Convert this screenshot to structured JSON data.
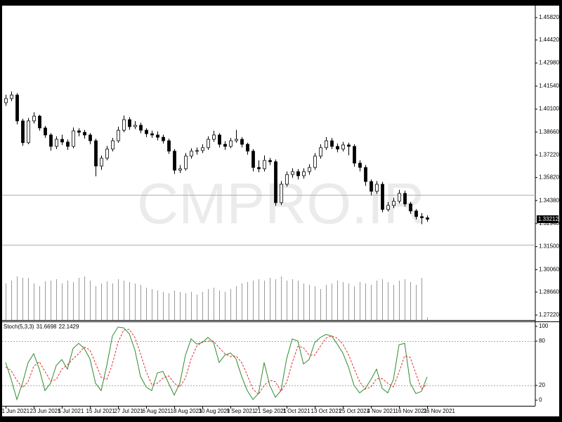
{
  "chart_data": [
    {
      "type": "candlestick",
      "watermark": "CMPRO.IR",
      "categories": [
        "1 Jun 2021",
        null,
        null,
        null,
        null,
        "23 Jun 2021",
        null,
        null,
        null,
        null,
        "5 Jul 2021",
        null,
        null,
        null,
        null,
        "15 Jul 2021",
        null,
        null,
        null,
        null,
        "27 Jul 2021",
        null,
        null,
        null,
        null,
        "6 Aug 2021",
        null,
        null,
        null,
        null,
        "18 Aug 2021",
        null,
        null,
        null,
        null,
        "30 Aug 2021",
        null,
        null,
        null,
        null,
        "9 Sep 2021",
        null,
        null,
        null,
        null,
        "21 Sep 2021",
        null,
        null,
        null,
        null,
        "1 Oct 2021",
        null,
        null,
        null,
        null,
        "13 Oct 2021",
        null,
        null,
        null,
        null,
        "25 Oct 2021",
        null,
        null,
        null,
        null,
        "4 Nov 2021",
        null,
        null,
        null,
        null,
        "16 Nov 2021",
        null,
        null,
        null,
        null,
        "26 Nov 2021"
      ],
      "ohlc": [
        [
          1.405,
          1.41,
          1.403,
          1.4076
        ],
        [
          1.4076,
          1.412,
          1.406,
          1.4098
        ],
        [
          1.4098,
          1.411,
          1.3915,
          1.3936
        ],
        [
          1.3936,
          1.395,
          1.378,
          1.38
        ],
        [
          1.38,
          1.3955,
          1.379,
          1.3936
        ],
        [
          1.3936,
          1.399,
          1.392,
          1.3966
        ],
        [
          1.3966,
          1.3975,
          1.3875,
          1.3892
        ],
        [
          1.3892,
          1.3905,
          1.383,
          1.3848
        ],
        [
          1.3848,
          1.386,
          1.375,
          1.3777
        ],
        [
          1.3777,
          1.384,
          1.376,
          1.3821
        ],
        [
          1.3821,
          1.385,
          1.3785,
          1.3804
        ],
        [
          1.3804,
          1.382,
          1.3755,
          1.3777
        ],
        [
          1.3777,
          1.3895,
          1.3765,
          1.3874
        ],
        [
          1.3874,
          1.389,
          1.384,
          1.3865
        ],
        [
          1.3865,
          1.388,
          1.3825,
          1.3848
        ],
        [
          1.3848,
          1.386,
          1.379,
          1.3812
        ],
        [
          1.3812,
          1.3825,
          1.359,
          1.3654
        ],
        [
          1.3654,
          1.372,
          1.363,
          1.3703
        ],
        [
          1.3703,
          1.378,
          1.369,
          1.376
        ],
        [
          1.376,
          1.383,
          1.3745,
          1.3812
        ],
        [
          1.3812,
          1.39,
          1.38,
          1.3878
        ],
        [
          1.3878,
          1.397,
          1.3865,
          1.3944
        ],
        [
          1.3944,
          1.396,
          1.388,
          1.39
        ],
        [
          1.39,
          1.3935,
          1.3885,
          1.3909
        ],
        [
          1.3909,
          1.3925,
          1.386,
          1.3878
        ],
        [
          1.3878,
          1.389,
          1.3835,
          1.3856
        ],
        [
          1.3856,
          1.3875,
          1.383,
          1.3848
        ],
        [
          1.3848,
          1.387,
          1.3815,
          1.3834
        ],
        [
          1.3834,
          1.385,
          1.3795,
          1.3812
        ],
        [
          1.3812,
          1.3825,
          1.373,
          1.3747
        ],
        [
          1.3747,
          1.376,
          1.3605,
          1.3628
        ],
        [
          1.3628,
          1.366,
          1.361,
          1.3637
        ],
        [
          1.3637,
          1.3735,
          1.3625,
          1.3716
        ],
        [
          1.3716,
          1.3765,
          1.37,
          1.3747
        ],
        [
          1.3747,
          1.377,
          1.3725,
          1.3751
        ],
        [
          1.3751,
          1.379,
          1.3735,
          1.3769
        ],
        [
          1.3769,
          1.384,
          1.3755,
          1.3821
        ],
        [
          1.3821,
          1.3875,
          1.3805,
          1.3848
        ],
        [
          1.3848,
          1.386,
          1.377,
          1.379
        ],
        [
          1.379,
          1.381,
          1.3755,
          1.3777
        ],
        [
          1.3777,
          1.383,
          1.3765,
          1.3812
        ],
        [
          1.3812,
          1.388,
          1.38,
          1.3821
        ],
        [
          1.3821,
          1.3835,
          1.377,
          1.379
        ],
        [
          1.379,
          1.38,
          1.3725,
          1.3747
        ],
        [
          1.3747,
          1.376,
          1.362,
          1.3645
        ],
        [
          1.3645,
          1.369,
          1.3615,
          1.3637
        ],
        [
          1.3637,
          1.372,
          1.362,
          1.3689
        ],
        [
          1.3689,
          1.3705,
          1.366,
          1.3681
        ],
        [
          1.3681,
          1.3695,
          1.3405,
          1.3425
        ],
        [
          1.3425,
          1.356,
          1.341,
          1.354
        ],
        [
          1.354,
          1.362,
          1.3525,
          1.3601
        ],
        [
          1.3601,
          1.364,
          1.358,
          1.3619
        ],
        [
          1.3619,
          1.3635,
          1.357,
          1.3593
        ],
        [
          1.3593,
          1.364,
          1.3575,
          1.3619
        ],
        [
          1.3619,
          1.3665,
          1.36,
          1.3645
        ],
        [
          1.3645,
          1.3735,
          1.363,
          1.3716
        ],
        [
          1.3716,
          1.379,
          1.37,
          1.3769
        ],
        [
          1.3769,
          1.3835,
          1.3755,
          1.3812
        ],
        [
          1.3812,
          1.383,
          1.376,
          1.3777
        ],
        [
          1.3777,
          1.3795,
          1.374,
          1.376
        ],
        [
          1.376,
          1.3805,
          1.3745,
          1.3786
        ],
        [
          1.3786,
          1.38,
          1.372,
          1.3777
        ],
        [
          1.3777,
          1.379,
          1.365,
          1.3672
        ],
        [
          1.3672,
          1.369,
          1.362,
          1.3645
        ],
        [
          1.3645,
          1.366,
          1.353,
          1.3557
        ],
        [
          1.3557,
          1.357,
          1.347,
          1.3496
        ],
        [
          1.3496,
          1.356,
          1.348,
          1.354
        ],
        [
          1.354,
          1.3555,
          1.3365,
          1.3382
        ],
        [
          1.3382,
          1.343,
          1.337,
          1.3408
        ],
        [
          1.3408,
          1.3455,
          1.339,
          1.3434
        ],
        [
          1.3434,
          1.3505,
          1.342,
          1.3483
        ],
        [
          1.3483,
          1.35,
          1.34,
          1.3417
        ],
        [
          1.3417,
          1.343,
          1.3355,
          1.3373
        ],
        [
          1.3373,
          1.3385,
          1.332,
          1.3338
        ],
        [
          1.3338,
          1.336,
          1.329,
          1.333
        ],
        [
          1.333,
          1.3345,
          1.3305,
          1.33212
        ]
      ],
      "volume": [
        52,
        56,
        62,
        60,
        60,
        52,
        48,
        55,
        56,
        58,
        52,
        56,
        54,
        60,
        62,
        56,
        48,
        52,
        55,
        52,
        58,
        56,
        54,
        52,
        50,
        46,
        44,
        42,
        40,
        38,
        42,
        40,
        38,
        40,
        36,
        40,
        44,
        46,
        42,
        40,
        44,
        48,
        52,
        54,
        56,
        58,
        56,
        60,
        58,
        62,
        56,
        58,
        56,
        52,
        50,
        48,
        44,
        50,
        52,
        56,
        54,
        52,
        48,
        54,
        52,
        50,
        56,
        58,
        54,
        50,
        56,
        58,
        54,
        50,
        60,
        4
      ],
      "hlines": [
        1.3474,
        1.3162
      ],
      "ylim": [
        1.2691,
        1.4657
      ],
      "yticks": [
        {
          "value": 1.4582,
          "label": "1.45820"
        },
        {
          "value": 1.4442,
          "label": "1.44420"
        },
        {
          "value": 1.4298,
          "label": "1.42980"
        },
        {
          "value": 1.4154,
          "label": "1.41540"
        },
        {
          "value": 1.401,
          "label": "1.40100"
        },
        {
          "value": 1.3866,
          "label": "1.38660"
        },
        {
          "value": 1.3722,
          "label": "1.37220"
        },
        {
          "value": 1.3582,
          "label": "1.35820"
        },
        {
          "value": 1.3438,
          "label": "1.34380"
        },
        {
          "value": 1.3294,
          "label": "1.32940"
        },
        {
          "value": 1.315,
          "label": "1.31500"
        },
        {
          "value": 1.3006,
          "label": "1.30060"
        },
        {
          "value": 1.2866,
          "label": "1.28660"
        },
        {
          "value": 1.2722,
          "label": "1.27220"
        }
      ],
      "color": "#000000"
    },
    {
      "type": "line",
      "title": "Stoch(5,3,3)",
      "ylim": [
        -7.6,
        105.7
      ],
      "yticks": [
        100,
        80,
        20,
        0
      ],
      "levels": [
        80,
        20
      ],
      "series": [
        {
          "color": "#2e8b2e",
          "values": [
            51,
            28,
            1,
            23,
            51,
            63,
            42,
            13,
            23,
            47,
            55,
            42,
            70,
            77,
            70,
            56,
            23,
            13,
            47,
            87,
            99,
            98,
            90,
            68,
            32,
            18,
            13,
            37,
            39,
            23,
            7,
            23,
            61,
            83,
            76,
            78,
            85,
            78,
            51,
            61,
            64,
            56,
            32,
            13,
            1,
            9,
            51,
            20,
            4,
            13,
            56,
            83,
            80,
            49,
            55,
            78,
            85,
            89,
            87,
            76,
            64,
            45,
            20,
            10,
            16,
            28,
            42,
            16,
            10,
            28,
            75,
            77,
            23,
            9,
            12,
            31.6698
          ]
        },
        {
          "color": "#e03030",
          "dashed": true,
          "values": [
            45,
            40,
            27,
            17,
            25,
            46,
            52,
            39,
            26,
            28,
            42,
            48,
            56,
            63,
            72,
            68,
            50,
            31,
            28,
            49,
            78,
            95,
            96,
            85,
            63,
            39,
            21,
            23,
            30,
            33,
            23,
            18,
            30,
            56,
            73,
            79,
            80,
            80,
            71,
            63,
            59,
            60,
            51,
            34,
            15,
            8,
            20,
            27,
            25,
            12,
            24,
            51,
            73,
            71,
            61,
            61,
            73,
            84,
            87,
            84,
            76,
            62,
            43,
            25,
            15,
            18,
            29,
            29,
            23,
            18,
            38,
            60,
            58,
            36,
            15,
            22.1429
          ]
        }
      ]
    }
  ]
}
